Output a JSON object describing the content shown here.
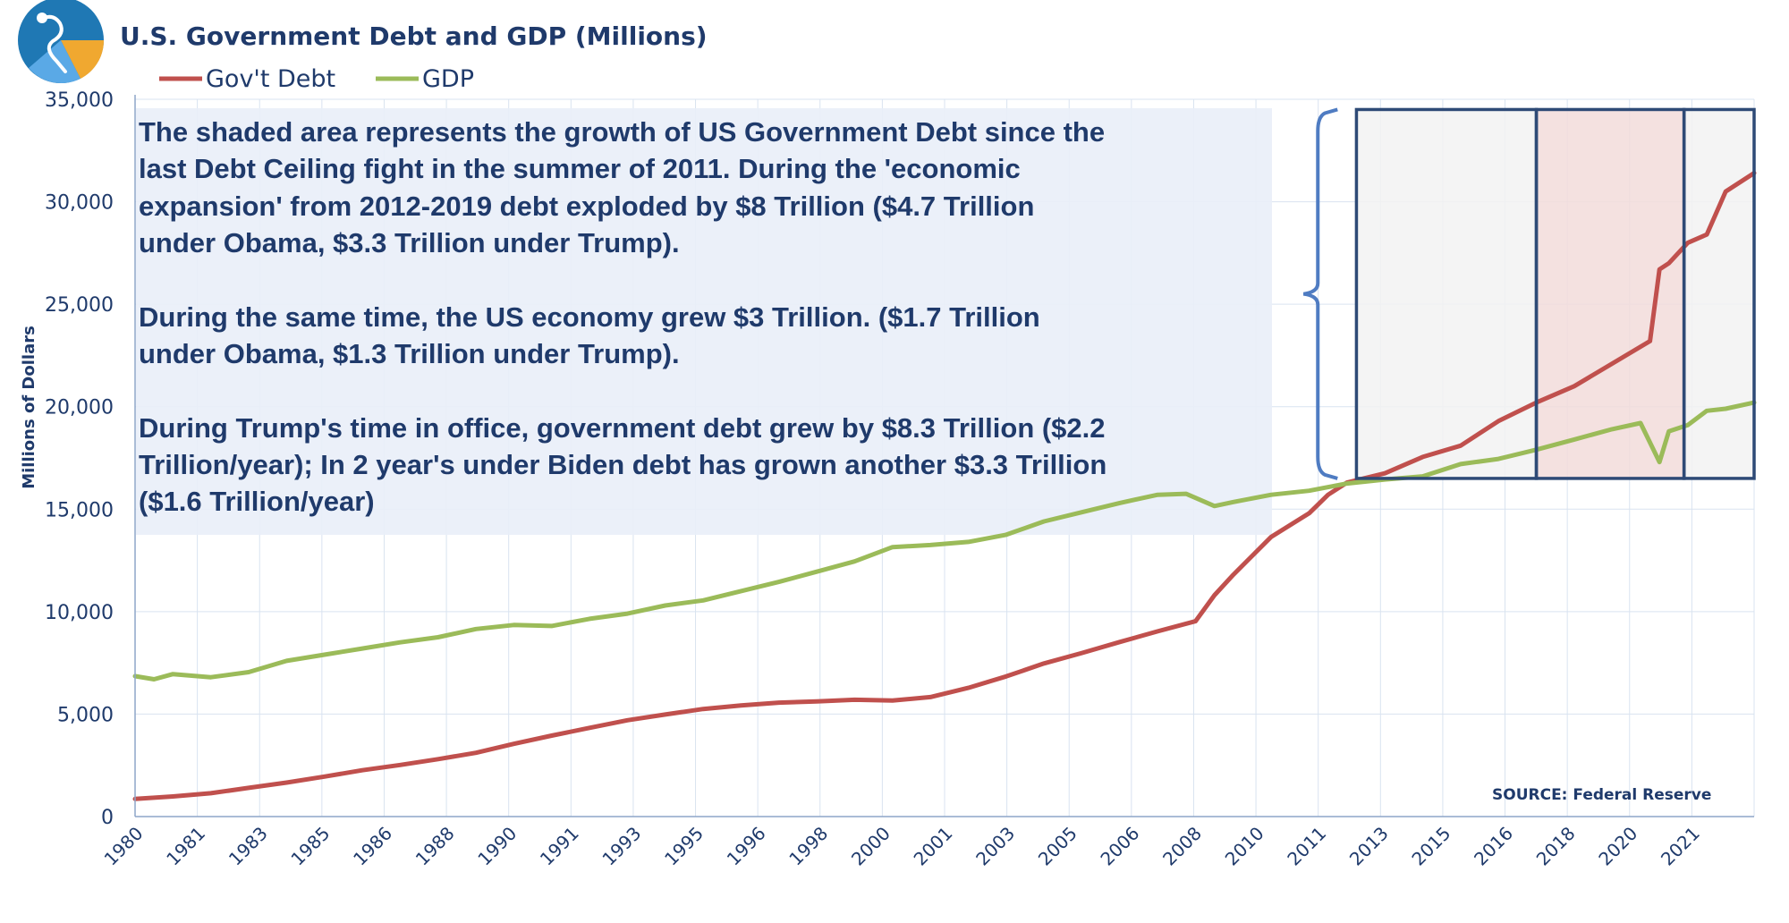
{
  "chart_data": {
    "type": "line",
    "title": "U.S. Government Debt and GDP (Millions)",
    "ylabel": "Millions of Dollars",
    "xlabel": "",
    "ylim": [
      0,
      35000
    ],
    "yticks": [
      0,
      5000,
      10000,
      15000,
      20000,
      25000,
      30000,
      35000
    ],
    "ytick_labels": [
      "0",
      "5,000",
      "10,000",
      "15,000",
      "20,000",
      "25,000",
      "30,000",
      "35,000"
    ],
    "xlim": [
      1980.0,
      2022.75
    ],
    "xtick_labels": [
      "1980",
      "1981",
      "1983",
      "1985",
      "1986",
      "1988",
      "1990",
      "1991",
      "1993",
      "1995",
      "1996",
      "1998",
      "2000",
      "2001",
      "2003",
      "2005",
      "2006",
      "2008",
      "2010",
      "2011",
      "2013",
      "2015",
      "2016",
      "2018",
      "2020",
      "2021"
    ],
    "grid": true,
    "legend": {
      "placement": "top-left",
      "entries": [
        "Gov't Debt",
        "GDP"
      ]
    },
    "colors": {
      "debt": "#c0504d",
      "gdp": "#9bbb59",
      "text": "#1f3a6b",
      "shade_grey": "#f2f2f2",
      "shade_red": "#f2dcdb",
      "box": "#2e4a76",
      "note_bg": "#e9eff8"
    },
    "series": [
      {
        "name": "Gov't Debt",
        "x": [
          1980,
          1981,
          1982,
          1983,
          1984,
          1985,
          1986,
          1987,
          1988,
          1989,
          1990,
          1991,
          1992,
          1993,
          1994,
          1995,
          1996,
          1997,
          1998,
          1999,
          2000,
          2001,
          2002,
          2003,
          2004,
          2005,
          2006,
          2007,
          2008,
          2008.5,
          2009,
          2010,
          2011,
          2011.5,
          2012,
          2013,
          2014,
          2015,
          2016,
          2017,
          2018,
          2019,
          2020,
          2020.25,
          2020.5,
          2021,
          2021.5,
          2022,
          2022.75
        ],
        "values": [
          860,
          980,
          1140,
          1400,
          1660,
          1950,
          2260,
          2520,
          2800,
          3110,
          3550,
          3950,
          4330,
          4700,
          4980,
          5250,
          5420,
          5560,
          5620,
          5700,
          5660,
          5830,
          6280,
          6840,
          7470,
          7980,
          8520,
          9040,
          9530,
          10800,
          11800,
          13650,
          14800,
          15700,
          16300,
          16750,
          17550,
          18100,
          19300,
          20200,
          21000,
          22100,
          23200,
          26700,
          27000,
          28000,
          28400,
          30500,
          31400
        ]
      },
      {
        "name": "GDP",
        "x": [
          1980,
          1980.5,
          1981,
          1982,
          1983,
          1984,
          1985,
          1986,
          1987,
          1988,
          1989,
          1990,
          1991,
          1992,
          1993,
          1994,
          1995,
          1996,
          1997,
          1998,
          1999,
          2000,
          2001,
          2002,
          2003,
          2004,
          2005,
          2006,
          2007,
          2007.75,
          2008.5,
          2009,
          2010,
          2011,
          2012,
          2013,
          2014,
          2015,
          2016,
          2017,
          2018,
          2019,
          2019.75,
          2020.25,
          2020.5,
          2021,
          2021.5,
          2022,
          2022.75
        ],
        "values": [
          6850,
          6700,
          6950,
          6800,
          7050,
          7600,
          7900,
          8200,
          8500,
          8750,
          9150,
          9350,
          9300,
          9650,
          9900,
          10300,
          10550,
          11000,
          11450,
          11950,
          12450,
          13150,
          13250,
          13400,
          13750,
          14400,
          14850,
          15300,
          15700,
          15750,
          15150,
          15350,
          15700,
          15900,
          16250,
          16450,
          16600,
          17200,
          17450,
          17900,
          18400,
          18900,
          19200,
          17300,
          18800,
          19100,
          19800,
          19900,
          20200
        ]
      }
    ],
    "annotation": {
      "lines": [
        "The shaded area represents the growth of US Government Debt since the",
        "last Debt Ceiling fight in the summer of 2011. During the 'economic",
        "expansion' from 2012-2019 debt exploded by $8 Trillion ($4.7 Trillion",
        "under Obama, $3.3 Trillion under Trump).",
        "",
        "During the same time, the US economy grew $3 Trillion. ($1.7 Trillion",
        "under Obama, $1.3 Trillion under Trump).",
        "",
        "During Trump's time in office, government debt grew by $8.3 Trillion ($2.2",
        "Trillion/year); In 2 year's under Biden debt has grown another $3.3 Trillion",
        "($1.6 Trillion/year)"
      ]
    },
    "source": "SOURCE:  Federal Reserve",
    "shaded_regions": [
      {
        "label": "obama",
        "x_start": 2012.25,
        "x_end": 2017.0,
        "y_start": 16500,
        "y_end": 34500
      },
      {
        "label": "trump",
        "x_start": 2017.0,
        "x_end": 2020.9,
        "y_start": 16500,
        "y_end": 34500
      },
      {
        "label": "biden",
        "x_start": 2020.9,
        "x_end": 2022.75,
        "y_start": 16500,
        "y_end": 34500
      }
    ],
    "bracket": {
      "x": 2011.75,
      "y_start": 16500,
      "y_end": 34500
    }
  }
}
